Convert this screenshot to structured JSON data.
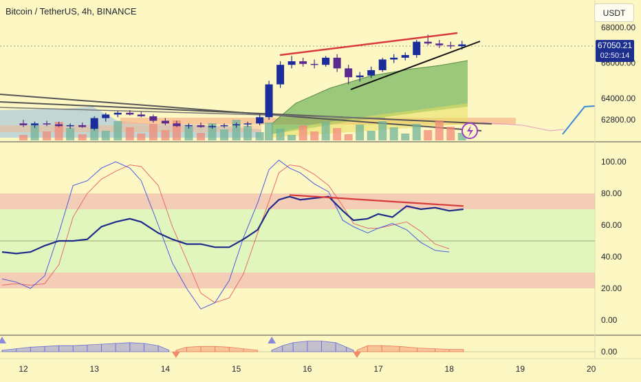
{
  "header": {
    "title": "Bitcoin / TetherUS, 4h, BINANCE",
    "currency_button": "USDT"
  },
  "price_tag": {
    "price": "67050.21",
    "countdown": "02:50:14"
  },
  "colors": {
    "bull": "#1a2d9a",
    "bear": "#5a2a8c",
    "rsi": "#1e2a8a",
    "stoch_k": "#4a5ae0",
    "stoch_d": "#e86a6a",
    "resistance": "#e03a3a",
    "support": "#111111",
    "cloud": "#5aa84a"
  },
  "chart_data": [
    {
      "type": "candlestick",
      "title": "Bitcoin / TetherUS, 4h, BINANCE",
      "y_ticks": [
        "68000.00",
        "66000.00",
        "64000.00",
        "62800.00"
      ],
      "x_ticks": [
        "12",
        "13",
        "14",
        "15",
        "16",
        "17",
        "18",
        "19",
        "20"
      ],
      "candles": [
        {
          "x": 12.0,
          "o": 62600,
          "h": 62800,
          "l": 62400,
          "c": 62500
        },
        {
          "x": 12.16,
          "o": 62500,
          "h": 62700,
          "l": 62350,
          "c": 62600
        },
        {
          "x": 12.33,
          "o": 62600,
          "h": 62750,
          "l": 62450,
          "c": 62550
        },
        {
          "x": 12.5,
          "o": 62550,
          "h": 62700,
          "l": 62400,
          "c": 62450
        },
        {
          "x": 12.66,
          "o": 62450,
          "h": 62600,
          "l": 62300,
          "c": 62500
        },
        {
          "x": 12.83,
          "o": 62500,
          "h": 62650,
          "l": 62350,
          "c": 62400
        },
        {
          "x": 13.0,
          "o": 62300,
          "h": 63000,
          "l": 62200,
          "c": 62900
        },
        {
          "x": 13.16,
          "o": 62900,
          "h": 63200,
          "l": 62700,
          "c": 63100
        },
        {
          "x": 13.33,
          "o": 63100,
          "h": 63300,
          "l": 62950,
          "c": 63200
        },
        {
          "x": 13.5,
          "o": 63200,
          "h": 63350,
          "l": 63050,
          "c": 63100
        },
        {
          "x": 13.66,
          "o": 63100,
          "h": 63250,
          "l": 62950,
          "c": 63000
        },
        {
          "x": 13.83,
          "o": 63000,
          "h": 63100,
          "l": 62650,
          "c": 62750
        },
        {
          "x": 14.0,
          "o": 62750,
          "h": 62900,
          "l": 62500,
          "c": 62600
        },
        {
          "x": 14.16,
          "o": 62600,
          "h": 62750,
          "l": 62400,
          "c": 62450
        },
        {
          "x": 14.33,
          "o": 62450,
          "h": 62600,
          "l": 62300,
          "c": 62500
        },
        {
          "x": 14.5,
          "o": 62500,
          "h": 62650,
          "l": 62350,
          "c": 62400
        },
        {
          "x": 14.66,
          "o": 62400,
          "h": 62550,
          "l": 62300,
          "c": 62450
        },
        {
          "x": 14.83,
          "o": 62450,
          "h": 62600,
          "l": 62350,
          "c": 62500
        },
        {
          "x": 15.0,
          "o": 62500,
          "h": 62650,
          "l": 62350,
          "c": 62550
        },
        {
          "x": 15.16,
          "o": 62550,
          "h": 62700,
          "l": 62400,
          "c": 62600
        },
        {
          "x": 15.33,
          "o": 62600,
          "h": 63100,
          "l": 62500,
          "c": 62950
        },
        {
          "x": 15.46,
          "o": 62950,
          "h": 65000,
          "l": 62800,
          "c": 64800
        },
        {
          "x": 15.62,
          "o": 64800,
          "h": 66100,
          "l": 64600,
          "c": 65900
        },
        {
          "x": 15.78,
          "o": 65900,
          "h": 66400,
          "l": 65700,
          "c": 66100
        },
        {
          "x": 15.94,
          "o": 66100,
          "h": 66300,
          "l": 65800,
          "c": 65950
        },
        {
          "x": 16.1,
          "o": 65950,
          "h": 66200,
          "l": 65700,
          "c": 65900
        },
        {
          "x": 16.26,
          "o": 65900,
          "h": 66400,
          "l": 65800,
          "c": 66300
        },
        {
          "x": 16.42,
          "o": 66300,
          "h": 66500,
          "l": 65500,
          "c": 65700
        },
        {
          "x": 16.58,
          "o": 65700,
          "h": 65900,
          "l": 64800,
          "c": 65200
        },
        {
          "x": 16.74,
          "o": 65200,
          "h": 65500,
          "l": 64950,
          "c": 65300
        },
        {
          "x": 16.9,
          "o": 65300,
          "h": 65800,
          "l": 65150,
          "c": 65600
        },
        {
          "x": 17.06,
          "o": 65600,
          "h": 66300,
          "l": 65500,
          "c": 66200
        },
        {
          "x": 17.22,
          "o": 66200,
          "h": 66500,
          "l": 66000,
          "c": 66300
        },
        {
          "x": 17.38,
          "o": 66300,
          "h": 66600,
          "l": 66150,
          "c": 66450
        },
        {
          "x": 17.54,
          "o": 66450,
          "h": 67300,
          "l": 66300,
          "c": 67200
        },
        {
          "x": 17.7,
          "o": 67200,
          "h": 67600,
          "l": 67000,
          "c": 67100
        },
        {
          "x": 17.86,
          "o": 67100,
          "h": 67300,
          "l": 66850,
          "c": 67000
        },
        {
          "x": 18.02,
          "o": 67000,
          "h": 67200,
          "l": 66800,
          "c": 66950
        },
        {
          "x": 18.18,
          "o": 66950,
          "h": 67250,
          "l": 66750,
          "c": 67050.21
        }
      ]
    },
    {
      "type": "line",
      "title": "",
      "y_ticks": [
        "100.00",
        "80.00",
        "60.00",
        "40.00",
        "20.00",
        "0.00"
      ],
      "ylim": [
        -5,
        108
      ],
      "bands": [
        [
          70,
          80
        ],
        [
          30,
          70
        ],
        [
          20,
          30
        ]
      ],
      "series": [
        {
          "values": [
            [
              11.7,
              43
            ],
            [
              11.9,
              42
            ],
            [
              12.1,
              43
            ],
            [
              12.3,
              47
            ],
            [
              12.5,
              50
            ],
            [
              12.7,
              50
            ],
            [
              12.9,
              51
            ],
            [
              13.1,
              59
            ],
            [
              13.3,
              62
            ],
            [
              13.5,
              64
            ],
            [
              13.66,
              62
            ],
            [
              13.9,
              55
            ],
            [
              14.1,
              51
            ],
            [
              14.3,
              48
            ],
            [
              14.5,
              48
            ],
            [
              14.7,
              46
            ],
            [
              14.9,
              46
            ],
            [
              15.1,
              51
            ],
            [
              15.3,
              57
            ],
            [
              15.46,
              70
            ],
            [
              15.6,
              76
            ],
            [
              15.75,
              78
            ],
            [
              15.9,
              76
            ],
            [
              16.1,
              77
            ],
            [
              16.3,
              78
            ],
            [
              16.5,
              69
            ],
            [
              16.65,
              63
            ],
            [
              16.85,
              64
            ],
            [
              17.0,
              67
            ],
            [
              17.2,
              65
            ],
            [
              17.4,
              72
            ],
            [
              17.6,
              70
            ],
            [
              17.8,
              71
            ],
            [
              18.0,
              69
            ],
            [
              18.2,
              70
            ]
          ]
        },
        {
          "values": [
            [
              11.7,
              26
            ],
            [
              11.9,
              24
            ],
            [
              12.1,
              20
            ],
            [
              12.3,
              28
            ],
            [
              12.5,
              55
            ],
            [
              12.7,
              85
            ],
            [
              12.9,
              88
            ],
            [
              13.1,
              96
            ],
            [
              13.3,
              100
            ],
            [
              13.5,
              96
            ],
            [
              13.66,
              88
            ],
            [
              13.9,
              60
            ],
            [
              14.1,
              36
            ],
            [
              14.3,
              20
            ],
            [
              14.5,
              7
            ],
            [
              14.7,
              11
            ],
            [
              14.9,
              25
            ],
            [
              15.1,
              52
            ],
            [
              15.3,
              74
            ],
            [
              15.46,
              95
            ],
            [
              15.6,
              101
            ],
            [
              15.75,
              96
            ],
            [
              15.9,
              93
            ],
            [
              16.1,
              86
            ],
            [
              16.3,
              81
            ],
            [
              16.5,
              63
            ],
            [
              16.65,
              59
            ],
            [
              16.85,
              55
            ],
            [
              17.0,
              58
            ],
            [
              17.2,
              61
            ],
            [
              17.4,
              57
            ],
            [
              17.6,
              49
            ],
            [
              17.8,
              44
            ],
            [
              18.0,
              43
            ]
          ]
        },
        {
          "values": [
            [
              11.7,
              22
            ],
            [
              11.9,
              23
            ],
            [
              12.1,
              22
            ],
            [
              12.3,
              23
            ],
            [
              12.5,
              35
            ],
            [
              12.7,
              65
            ],
            [
              12.9,
              80
            ],
            [
              13.1,
              89
            ],
            [
              13.3,
              94
            ],
            [
              13.5,
              98
            ],
            [
              13.66,
              97
            ],
            [
              13.9,
              85
            ],
            [
              14.1,
              59
            ],
            [
              14.3,
              38
            ],
            [
              14.5,
              17
            ],
            [
              14.7,
              11
            ],
            [
              14.9,
              14
            ],
            [
              15.1,
              29
            ],
            [
              15.3,
              55
            ],
            [
              15.46,
              75
            ],
            [
              15.6,
              93
            ],
            [
              15.75,
              98
            ],
            [
              15.9,
              97
            ],
            [
              16.1,
              92
            ],
            [
              16.3,
              85
            ],
            [
              16.5,
              72
            ],
            [
              16.65,
              61
            ],
            [
              16.85,
              58
            ],
            [
              17.0,
              58
            ],
            [
              17.2,
              60
            ],
            [
              17.4,
              62
            ],
            [
              17.6,
              56
            ],
            [
              17.8,
              48
            ],
            [
              18.0,
              45
            ]
          ]
        }
      ],
      "trendline": [
        [
          15.75,
          79
        ],
        [
          18.2,
          72
        ]
      ]
    },
    {
      "type": "area",
      "title": "",
      "y_ticks": [
        "0.00"
      ],
      "ylim": [
        -2,
        10
      ],
      "series": [
        {
          "values": [
            [
              11.7,
              1
            ],
            [
              11.9,
              2
            ],
            [
              12.1,
              3
            ],
            [
              12.3,
              3.5
            ],
            [
              12.5,
              4
            ],
            [
              12.7,
              4
            ],
            [
              12.9,
              4.5
            ],
            [
              13.1,
              5
            ],
            [
              13.3,
              5.5
            ],
            [
              13.5,
              6
            ],
            [
              13.7,
              5.5
            ],
            [
              13.9,
              4
            ],
            [
              14.05,
              1
            ]
          ]
        },
        {
          "values": [
            [
              14.15,
              1
            ],
            [
              14.3,
              3
            ],
            [
              14.5,
              3.5
            ],
            [
              14.7,
              3.5
            ],
            [
              14.9,
              3
            ],
            [
              15.1,
              2
            ],
            [
              15.3,
              1
            ]
          ]
        },
        {
          "values": [
            [
              15.5,
              1
            ],
            [
              15.65,
              4
            ],
            [
              15.8,
              6
            ],
            [
              16.0,
              7
            ],
            [
              16.2,
              7
            ],
            [
              16.4,
              6
            ],
            [
              16.55,
              3
            ],
            [
              16.65,
              1
            ]
          ]
        },
        {
          "values": [
            [
              16.7,
              1
            ],
            [
              16.85,
              4
            ],
            [
              17.05,
              4
            ],
            [
              17.3,
              3.5
            ],
            [
              17.55,
              2.5
            ],
            [
              17.8,
              2
            ],
            [
              18.0,
              1.5
            ],
            [
              18.2,
              1.5
            ]
          ]
        }
      ]
    }
  ]
}
